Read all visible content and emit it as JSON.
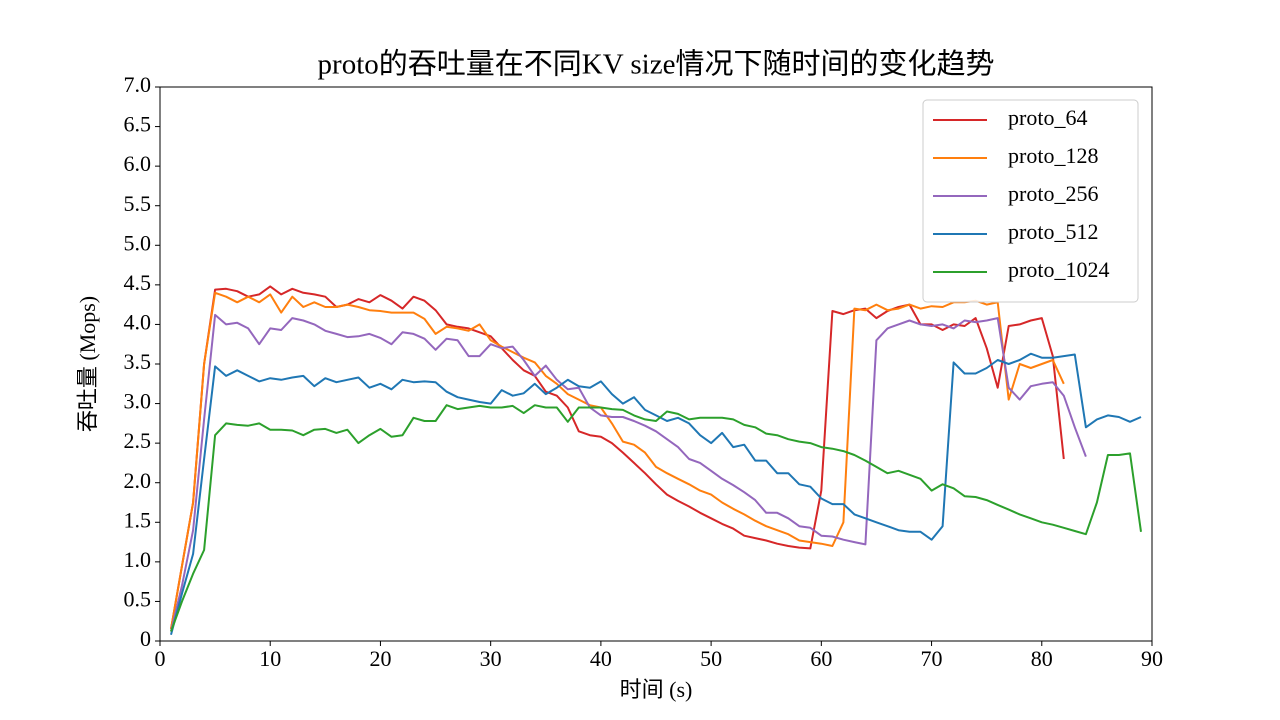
{
  "chart_data": {
    "type": "line",
    "title": "proto的吞吐量在不同KV size情况下随时间的变化趋势",
    "xlabel": "时间 (s)",
    "ylabel": "吞吐量 (Mops)",
    "x": [
      1,
      2,
      3,
      4,
      5,
      6,
      7,
      8,
      9,
      10,
      11,
      12,
      13,
      14,
      15,
      16,
      17,
      18,
      19,
      20,
      21,
      22,
      23,
      24,
      25,
      26,
      27,
      28,
      29,
      30,
      31,
      32,
      33,
      34,
      35,
      36,
      37,
      38,
      39,
      40,
      41,
      42,
      43,
      44,
      45,
      46,
      47,
      48,
      49,
      50,
      51,
      52,
      53,
      54,
      55,
      56,
      57,
      58,
      59,
      60,
      61,
      62,
      63,
      64,
      65,
      66,
      67,
      68,
      69,
      70,
      71,
      72,
      73,
      74,
      75,
      76,
      77,
      78,
      79,
      80,
      81,
      82,
      83,
      84,
      85,
      86,
      87,
      88,
      89
    ],
    "series": [
      {
        "name": "proto_64",
        "color": "#d62728",
        "values": [
          0.15,
          0.95,
          1.75,
          3.5,
          4.44,
          4.45,
          4.42,
          4.35,
          4.38,
          4.48,
          4.38,
          4.45,
          4.4,
          4.38,
          4.35,
          4.22,
          4.25,
          4.32,
          4.28,
          4.37,
          4.3,
          4.2,
          4.35,
          4.3,
          4.18,
          4.0,
          3.97,
          3.95,
          3.9,
          3.85,
          3.7,
          3.55,
          3.42,
          3.35,
          3.15,
          3.1,
          2.95,
          2.65,
          2.6,
          2.58,
          2.5,
          2.38,
          2.25,
          2.12,
          1.98,
          1.85,
          1.77,
          1.7,
          1.62,
          1.55,
          1.48,
          1.42,
          1.33,
          1.3,
          1.27,
          1.23,
          1.2,
          1.18,
          1.17,
          1.9,
          4.17,
          4.13,
          4.18,
          4.2,
          4.08,
          4.17,
          4.22,
          4.25,
          4.0,
          4.0,
          3.93,
          4.0,
          3.98,
          4.08,
          3.7,
          3.2,
          3.98,
          4.0,
          4.05,
          4.08,
          3.6,
          2.3,
          null,
          null,
          null,
          null,
          null,
          null,
          null
        ]
      },
      {
        "name": "proto_128",
        "color": "#ff7f0e",
        "values": [
          0.15,
          0.95,
          1.75,
          3.5,
          4.4,
          4.35,
          4.28,
          4.35,
          4.28,
          4.38,
          4.15,
          4.35,
          4.22,
          4.28,
          4.22,
          4.22,
          4.25,
          4.22,
          4.18,
          4.17,
          4.15,
          4.15,
          4.15,
          4.07,
          3.88,
          3.97,
          3.95,
          3.92,
          4.0,
          3.8,
          3.72,
          3.65,
          3.58,
          3.52,
          3.35,
          3.25,
          3.12,
          3.05,
          2.98,
          2.95,
          2.75,
          2.52,
          2.48,
          2.38,
          2.2,
          2.12,
          2.05,
          1.98,
          1.9,
          1.85,
          1.75,
          1.67,
          1.6,
          1.52,
          1.45,
          1.4,
          1.35,
          1.27,
          1.25,
          1.23,
          1.2,
          1.5,
          4.2,
          4.18,
          4.25,
          4.18,
          4.2,
          4.25,
          4.2,
          4.23,
          4.22,
          4.28,
          4.28,
          4.3,
          4.25,
          4.28,
          3.05,
          3.5,
          3.45,
          3.5,
          3.55,
          3.25,
          null,
          null,
          null,
          null,
          null,
          null,
          null
        ]
      },
      {
        "name": "proto_256",
        "color": "#9467bd",
        "values": [
          0.12,
          0.7,
          1.4,
          2.8,
          4.12,
          4.0,
          4.02,
          3.95,
          3.75,
          3.95,
          3.93,
          4.08,
          4.05,
          4.0,
          3.92,
          3.88,
          3.84,
          3.85,
          3.88,
          3.83,
          3.75,
          3.9,
          3.88,
          3.82,
          3.68,
          3.82,
          3.8,
          3.6,
          3.6,
          3.75,
          3.7,
          3.72,
          3.55,
          3.35,
          3.48,
          3.3,
          3.18,
          3.2,
          2.95,
          2.85,
          2.83,
          2.83,
          2.78,
          2.72,
          2.65,
          2.55,
          2.45,
          2.3,
          2.25,
          2.15,
          2.05,
          1.97,
          1.88,
          1.78,
          1.62,
          1.62,
          1.55,
          1.45,
          1.43,
          1.33,
          1.32,
          1.28,
          1.25,
          1.22,
          3.8,
          3.95,
          4.0,
          4.05,
          4.0,
          3.98,
          4.0,
          3.95,
          4.05,
          4.03,
          4.05,
          4.08,
          3.2,
          3.05,
          3.22,
          3.25,
          3.27,
          3.1,
          2.7,
          2.33,
          null,
          null,
          null,
          null,
          null
        ]
      },
      {
        "name": "proto_512",
        "color": "#1f77b4",
        "values": [
          0.08,
          0.6,
          1.1,
          2.3,
          3.47,
          3.35,
          3.42,
          3.35,
          3.28,
          3.32,
          3.3,
          3.33,
          3.35,
          3.22,
          3.32,
          3.27,
          3.3,
          3.33,
          3.2,
          3.25,
          3.18,
          3.3,
          3.27,
          3.28,
          3.27,
          3.15,
          3.08,
          3.05,
          3.02,
          3.0,
          3.17,
          3.1,
          3.13,
          3.25,
          3.12,
          3.2,
          3.3,
          3.22,
          3.2,
          3.28,
          3.12,
          3.0,
          3.08,
          2.92,
          2.85,
          2.78,
          2.82,
          2.75,
          2.6,
          2.5,
          2.63,
          2.45,
          2.48,
          2.28,
          2.28,
          2.12,
          2.12,
          1.98,
          1.95,
          1.8,
          1.73,
          1.73,
          1.6,
          1.55,
          1.5,
          1.45,
          1.4,
          1.38,
          1.38,
          1.28,
          1.45,
          3.52,
          3.38,
          3.38,
          3.45,
          3.55,
          3.5,
          3.55,
          3.63,
          3.58,
          3.58,
          3.6,
          3.62,
          2.7,
          2.8,
          2.85,
          2.83,
          2.77,
          2.83
        ]
      },
      {
        "name": "proto_1024",
        "color": "#2ca02c",
        "values": [
          0.12,
          0.5,
          0.85,
          1.15,
          2.6,
          2.75,
          2.73,
          2.72,
          2.75,
          2.67,
          2.67,
          2.66,
          2.6,
          2.67,
          2.68,
          2.63,
          2.67,
          2.5,
          2.6,
          2.68,
          2.58,
          2.6,
          2.82,
          2.78,
          2.78,
          2.98,
          2.93,
          2.95,
          2.97,
          2.95,
          2.95,
          2.97,
          2.88,
          2.98,
          2.95,
          2.95,
          2.77,
          2.95,
          2.95,
          2.95,
          2.93,
          2.92,
          2.85,
          2.8,
          2.78,
          2.9,
          2.87,
          2.8,
          2.82,
          2.82,
          2.82,
          2.8,
          2.73,
          2.7,
          2.62,
          2.6,
          2.55,
          2.52,
          2.5,
          2.45,
          2.43,
          2.4,
          2.35,
          2.28,
          2.2,
          2.12,
          2.15,
          2.1,
          2.05,
          1.9,
          1.98,
          1.93,
          1.83,
          1.82,
          1.78,
          1.72,
          1.66,
          1.6,
          1.55,
          1.5,
          1.47,
          1.43,
          1.39,
          1.35,
          1.75,
          2.35,
          2.35,
          2.37,
          1.38
        ]
      }
    ],
    "xlim": [
      0,
      90
    ],
    "xticks": [
      0,
      10,
      20,
      30,
      40,
      50,
      60,
      70,
      80,
      90
    ],
    "ylim": [
      0,
      7
    ],
    "yticks": [
      0,
      {
        "value": 0.5,
        "label": "0.5"
      },
      {
        "value": 1,
        "label": "1.0"
      },
      {
        "value": 1.5,
        "label": "1.5"
      },
      {
        "value": 2,
        "label": "2.0"
      },
      {
        "value": 2.5,
        "label": "2.5"
      },
      {
        "value": 3,
        "label": "3.0"
      },
      {
        "value": 3.5,
        "label": "3.5"
      },
      {
        "value": 4,
        "label": "4.0"
      },
      {
        "value": 4.5,
        "label": "4.5"
      },
      {
        "value": 5,
        "label": "5.0"
      },
      {
        "value": 5.5,
        "label": "5.5"
      },
      {
        "value": 6,
        "label": "6.0"
      },
      {
        "value": 6.5,
        "label": "6.5"
      },
      {
        "value": 7,
        "label": "7.0"
      }
    ],
    "legend": "upper right",
    "grid": false
  }
}
